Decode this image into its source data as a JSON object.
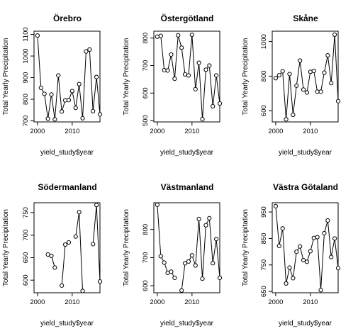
{
  "chart_data": [
    {
      "type": "line",
      "title": "Örebro",
      "xlabel": "yield_study$year",
      "ylabel": "Total Yearly Precipitation",
      "xlim": [
        1999,
        2018
      ],
      "ylim": [
        695,
        1115
      ],
      "xticks": [
        2000,
        2010
      ],
      "yticks": [
        700,
        800,
        900,
        1000,
        1100
      ],
      "x": [
        2000,
        2001,
        2002,
        2003,
        2004,
        2005,
        2006,
        2007,
        2008,
        2009,
        2010,
        2011,
        2012,
        2013,
        2014,
        2015,
        2016,
        2017,
        2018
      ],
      "y": [
        1095,
        853,
        825,
        710,
        822,
        707,
        910,
        743,
        795,
        796,
        838,
        760,
        870,
        712,
        1021,
        1030,
        745,
        903,
        730
      ]
    },
    {
      "type": "line",
      "title": "Östergötland",
      "xlabel": "yield_study$year",
      "ylabel": "Total Yearly Precipitation",
      "xlim": [
        1999,
        2018
      ],
      "ylim": [
        495,
        825
      ],
      "xticks": [
        2000,
        2010
      ],
      "yticks": [
        500,
        600,
        700,
        800
      ],
      "x": [
        2000,
        2001,
        2002,
        2003,
        2004,
        2005,
        2006,
        2007,
        2008,
        2009,
        2010,
        2011,
        2012,
        2013,
        2014,
        2015,
        2016,
        2017,
        2018
      ],
      "y": [
        805,
        808,
        683,
        682,
        740,
        652,
        810,
        765,
        668,
        664,
        812,
        614,
        710,
        505,
        685,
        700,
        552,
        664,
        562
      ]
    },
    {
      "type": "line",
      "title": "Skåne",
      "xlabel": "yield_study$year",
      "ylabel": "Total Yearly Precipitation",
      "xlim": [
        1999,
        2018
      ],
      "ylim": [
        535,
        1060
      ],
      "xticks": [
        2000,
        2010
      ],
      "yticks": [
        600,
        800,
        1000
      ],
      "x": [
        2000,
        2001,
        2002,
        2003,
        2004,
        2005,
        2006,
        2007,
        2008,
        2009,
        2010,
        2011,
        2012,
        2013,
        2014,
        2015,
        2016,
        2017,
        2018
      ],
      "y": [
        788,
        805,
        828,
        550,
        812,
        576,
        745,
        890,
        722,
        705,
        825,
        830,
        710,
        710,
        820,
        920,
        760,
        1040,
        655
      ]
    },
    {
      "type": "line",
      "title": "Södermanland",
      "xlabel": "yield_study$year",
      "ylabel": "Total Yearly Precipitation",
      "xlim": [
        1999,
        2018
      ],
      "ylim": [
        572,
        772
      ],
      "xticks": [
        2000,
        2010
      ],
      "yticks": [
        600,
        650,
        700,
        750
      ],
      "x": [
        2000,
        2001,
        2002,
        2003,
        2004,
        2005,
        2006,
        2007,
        2008,
        2009,
        2010,
        2011,
        2012,
        2013,
        2014,
        2015,
        2016,
        2017,
        2018
      ],
      "y": [
        null,
        null,
        null,
        657,
        654,
        628,
        null,
        588,
        679,
        684,
        null,
        697,
        751,
        576,
        null,
        null,
        680,
        767,
        597
      ]
    },
    {
      "type": "line",
      "title": "Västmanland",
      "xlabel": "yield_study$year",
      "ylabel": "Total Yearly Precipitation",
      "xlim": [
        1999,
        2018
      ],
      "ylim": [
        575,
        895
      ],
      "xticks": [
        2000,
        2010
      ],
      "yticks": [
        600,
        700,
        800
      ],
      "x": [
        2000,
        2001,
        2002,
        2003,
        2004,
        2005,
        2006,
        2007,
        2008,
        2009,
        2010,
        2011,
        2012,
        2013,
        2014,
        2015,
        2016,
        2017,
        2018
      ],
      "y": [
        888,
        705,
        682,
        646,
        650,
        628,
        null,
        583,
        680,
        686,
        708,
        672,
        837,
        625,
        815,
        840,
        680,
        766,
        628
      ]
    },
    {
      "type": "line",
      "title": "Västra Götaland",
      "xlabel": "yield_study$year",
      "ylabel": "Total Yearly Precipitation",
      "xlim": [
        1999,
        2018
      ],
      "ylim": [
        645,
        985
      ],
      "xticks": [
        2000,
        2010
      ],
      "yticks": [
        650,
        750,
        850,
        950
      ],
      "x": [
        2000,
        2001,
        2002,
        2003,
        2004,
        2005,
        2006,
        2007,
        2008,
        2009,
        2010,
        2011,
        2012,
        2013,
        2014,
        2015,
        2016,
        2017,
        2018
      ],
      "y": [
        972,
        822,
        888,
        680,
        740,
        700,
        800,
        820,
        768,
        762,
        802,
        852,
        855,
        655,
        870,
        918,
        780,
        850,
        738
      ]
    }
  ]
}
